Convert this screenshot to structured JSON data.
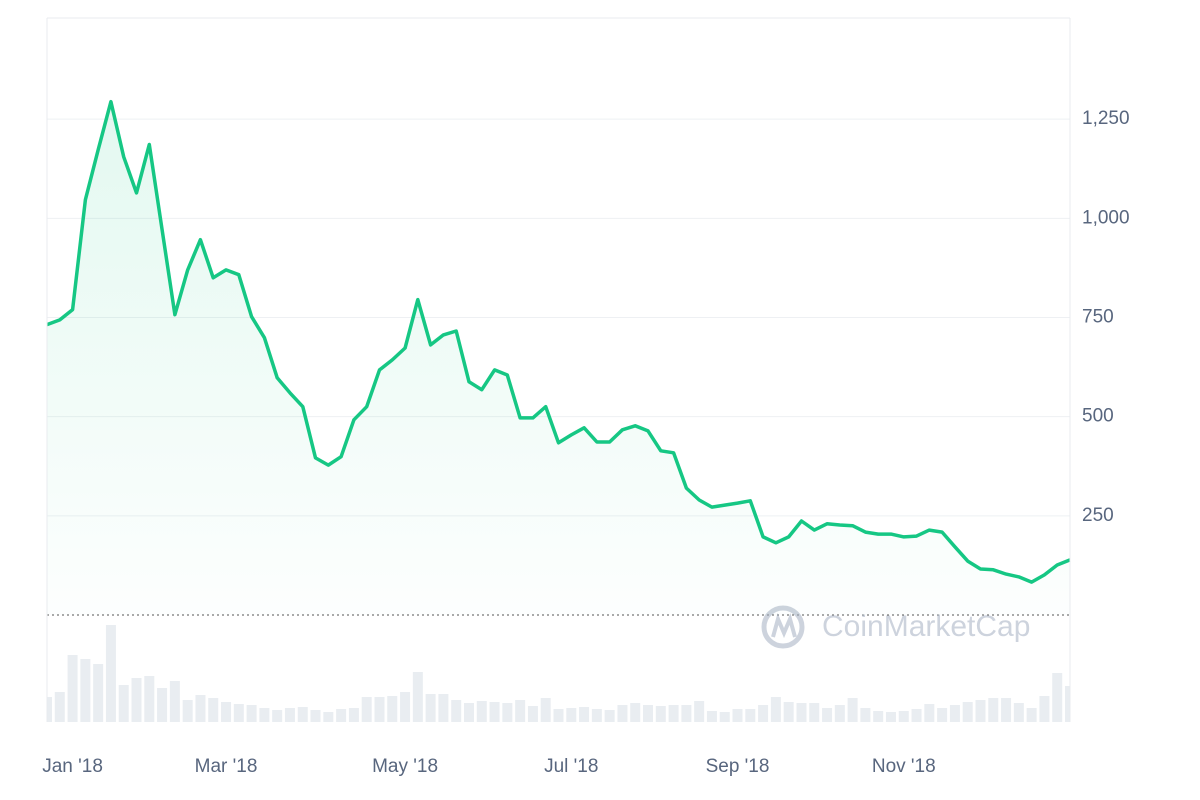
{
  "chart_data": {
    "type": "line",
    "watermark": "CoinMarketCap",
    "categories": [
      null,
      null,
      "Jan '18",
      null,
      null,
      null,
      null,
      null,
      null,
      null,
      null,
      null,
      null,
      null,
      "Mar '18",
      null,
      null,
      null,
      null,
      null,
      null,
      null,
      null,
      null,
      null,
      null,
      null,
      null,
      "May '18",
      null,
      null,
      null,
      null,
      null,
      null,
      null,
      null,
      null,
      null,
      null,
      null,
      "Jul '18",
      null,
      null,
      null,
      null,
      null,
      null,
      null,
      null,
      null,
      null,
      null,
      null,
      "Sep '18",
      null,
      null,
      null,
      null,
      null,
      null,
      null,
      null,
      null,
      null,
      null,
      null,
      "Nov '18",
      null,
      null,
      null,
      null,
      null,
      null,
      null,
      null,
      null,
      null,
      null,
      null,
      null
    ],
    "values": [
      732,
      744,
      770,
      1047,
      1173,
      1294,
      1155,
      1064,
      1186,
      971,
      757,
      870,
      946,
      850,
      870,
      858,
      752,
      699,
      598,
      560,
      525,
      396,
      378,
      399,
      492,
      525,
      618,
      643,
      673,
      795,
      681,
      706,
      716,
      588,
      568,
      618,
      605,
      497,
      497,
      525,
      434,
      454,
      472,
      436,
      436,
      467,
      477,
      464,
      414,
      409,
      320,
      290,
      272,
      277,
      282,
      288,
      197,
      182,
      197,
      237,
      214,
      230,
      227,
      225,
      209,
      204,
      204,
      197,
      199,
      214,
      209,
      172,
      136,
      116,
      114,
      103,
      96,
      83,
      101,
      126,
      139
    ],
    "color": "#16c784",
    "ylim": [
      0,
      1505
    ],
    "yticks": [
      250,
      500,
      750,
      {
        "value": 1000,
        "label": "1,000"
      },
      {
        "value": 1250,
        "label": "1,250"
      }
    ],
    "grid": true,
    "volume": {
      "color": "#e9edf1",
      "ylim": [
        0,
        100
      ],
      "values": [
        25,
        30,
        67,
        63,
        58,
        97,
        37,
        44,
        46,
        34,
        41,
        22,
        27,
        24,
        20,
        18,
        17,
        14,
        12,
        14,
        15,
        12,
        10,
        13,
        14,
        25,
        25,
        26,
        30,
        50,
        28,
        28,
        22,
        19,
        21,
        20,
        19,
        22,
        16,
        24,
        13,
        14,
        15,
        13,
        12,
        17,
        19,
        17,
        16,
        17,
        17,
        21,
        11,
        10,
        13,
        13,
        17,
        25,
        20,
        19,
        19,
        14,
        17,
        24,
        14,
        11,
        10,
        11,
        13,
        18,
        14,
        17,
        20,
        22,
        24,
        24,
        19,
        14,
        26,
        49,
        36
      ]
    }
  }
}
